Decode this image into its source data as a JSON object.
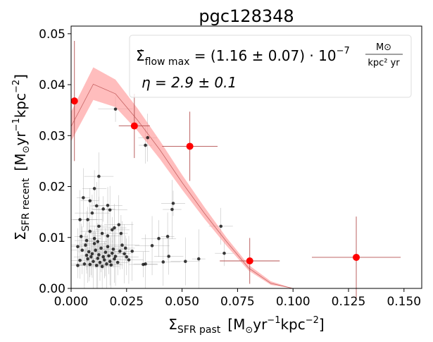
{
  "chart_data": {
    "type": "scatter",
    "title": "pgc128348",
    "xlabel": {
      "sym": "Σ",
      "sub": "SFR past",
      "units_pre": "[M",
      "units_sun": "⊙",
      "units_yr": "yr",
      "units_exp1": "−1",
      "units_kpc": "kpc",
      "units_exp2": "−2",
      "units_close": "]"
    },
    "ylabel": {
      "sym": "Σ",
      "sub": "SFR recent",
      "units_pre": "[M",
      "units_sun": "⊙",
      "units_yr": "yr",
      "units_exp1": "−1",
      "units_kpc": "kpc",
      "units_exp2": "−2",
      "units_close": "]"
    },
    "xlim": [
      0.0,
      0.158
    ],
    "ylim": [
      0.0,
      0.0515
    ],
    "xticks": [
      0.0,
      0.025,
      0.05,
      0.075,
      0.1,
      0.125,
      0.15
    ],
    "xtick_labels": [
      "0.000",
      "0.025",
      "0.050",
      "0.075",
      "0.100",
      "0.125",
      "0.150"
    ],
    "yticks": [
      0.0,
      0.01,
      0.02,
      0.03,
      0.04,
      0.05
    ],
    "ytick_labels": [
      "0.00",
      "0.01",
      "0.02",
      "0.03",
      "0.04",
      "0.05"
    ],
    "annotation": {
      "line1_sym": "Σ̇",
      "line1_sub": "flow max",
      "line1_eq": " = (1.16 ± 0.07) · 10",
      "line1_exp": "−7",
      "line1_frac_num": "M⊙",
      "line1_frac_den": "kpc² yr",
      "line2": "η = 2.9 ± 0.1"
    },
    "colors": {
      "binned": "#ff0000",
      "binned_err": "#b45050",
      "scatter": "#000000",
      "band": "#ff9999",
      "model_line": "#c86464"
    },
    "model_band": {
      "x": [
        0.0,
        0.01,
        0.02,
        0.03,
        0.04,
        0.05,
        0.06,
        0.07,
        0.08,
        0.09,
        0.1,
        0.13
      ],
      "center": [
        0.0318,
        0.0401,
        0.0382,
        0.033,
        0.0272,
        0.0208,
        0.0148,
        0.0092,
        0.004,
        0.001,
        0.0,
        0.0
      ],
      "lower": [
        0.0289,
        0.037,
        0.0356,
        0.0309,
        0.0254,
        0.0194,
        0.0137,
        0.0084,
        0.0035,
        0.0007,
        0.0,
        0.0
      ],
      "upper": [
        0.0347,
        0.0434,
        0.041,
        0.0353,
        0.029,
        0.0223,
        0.016,
        0.01,
        0.0046,
        0.0014,
        0.0,
        0.0
      ]
    },
    "binned_points": [
      {
        "x": 0.0015,
        "y": 0.0368,
        "xerr": 0.0015,
        "yerr": 0.0118
      },
      {
        "x": 0.0285,
        "y": 0.0319,
        "xerr": 0.007,
        "yerr": 0.0063
      },
      {
        "x": 0.0535,
        "y": 0.0279,
        "xerr": 0.0125,
        "yerr": 0.0068
      },
      {
        "x": 0.0805,
        "y": 0.0054,
        "xerr": 0.0135,
        "yerr": 0.0045
      },
      {
        "x": 0.1285,
        "y": 0.0061,
        "xerr": 0.02,
        "yerr": 0.008
      }
    ],
    "scatter_points": [
      {
        "x": 0.003,
        "y": 0.0045
      },
      {
        "x": 0.004,
        "y": 0.0055
      },
      {
        "x": 0.005,
        "y": 0.0075
      },
      {
        "x": 0.006,
        "y": 0.0048
      },
      {
        "x": 0.0065,
        "y": 0.0085
      },
      {
        "x": 0.007,
        "y": 0.0065
      },
      {
        "x": 0.0075,
        "y": 0.0058
      },
      {
        "x": 0.008,
        "y": 0.0072
      },
      {
        "x": 0.0085,
        "y": 0.0047
      },
      {
        "x": 0.009,
        "y": 0.0062
      },
      {
        "x": 0.0095,
        "y": 0.0068
      },
      {
        "x": 0.01,
        "y": 0.0053
      },
      {
        "x": 0.0105,
        "y": 0.0088
      },
      {
        "x": 0.011,
        "y": 0.0075
      },
      {
        "x": 0.0115,
        "y": 0.0045
      },
      {
        "x": 0.012,
        "y": 0.0059
      },
      {
        "x": 0.0125,
        "y": 0.0066
      },
      {
        "x": 0.013,
        "y": 0.0051
      },
      {
        "x": 0.0135,
        "y": 0.0079
      },
      {
        "x": 0.014,
        "y": 0.0043
      },
      {
        "x": 0.0145,
        "y": 0.0062
      },
      {
        "x": 0.015,
        "y": 0.0056
      },
      {
        "x": 0.0155,
        "y": 0.0071
      },
      {
        "x": 0.016,
        "y": 0.0048
      },
      {
        "x": 0.0165,
        "y": 0.0082
      },
      {
        "x": 0.017,
        "y": 0.0064
      },
      {
        "x": 0.0175,
        "y": 0.0053
      },
      {
        "x": 0.018,
        "y": 0.0046
      },
      {
        "x": 0.0185,
        "y": 0.0069
      },
      {
        "x": 0.019,
        "y": 0.0077
      },
      {
        "x": 0.0195,
        "y": 0.0058
      },
      {
        "x": 0.02,
        "y": 0.0063
      },
      {
        "x": 0.021,
        "y": 0.0051
      },
      {
        "x": 0.022,
        "y": 0.0073
      },
      {
        "x": 0.023,
        "y": 0.0085
      },
      {
        "x": 0.024,
        "y": 0.0068
      },
      {
        "x": 0.0245,
        "y": 0.0079
      },
      {
        "x": 0.025,
        "y": 0.0062
      },
      {
        "x": 0.026,
        "y": 0.0056
      },
      {
        "x": 0.0275,
        "y": 0.0073
      },
      {
        "x": 0.0105,
        "y": 0.0098
      },
      {
        "x": 0.012,
        "y": 0.0092
      },
      {
        "x": 0.014,
        "y": 0.0108
      },
      {
        "x": 0.0165,
        "y": 0.0103
      },
      {
        "x": 0.0185,
        "y": 0.0115
      },
      {
        "x": 0.0225,
        "y": 0.0108
      },
      {
        "x": 0.0085,
        "y": 0.0112
      },
      {
        "x": 0.007,
        "y": 0.0094
      },
      {
        "x": 0.0075,
        "y": 0.0135
      },
      {
        "x": 0.0095,
        "y": 0.0148
      },
      {
        "x": 0.0115,
        "y": 0.0162
      },
      {
        "x": 0.0125,
        "y": 0.0122
      },
      {
        "x": 0.0145,
        "y": 0.0156
      },
      {
        "x": 0.0165,
        "y": 0.0163
      },
      {
        "x": 0.0175,
        "y": 0.0154
      },
      {
        "x": 0.0055,
        "y": 0.0178
      },
      {
        "x": 0.0085,
        "y": 0.0172
      },
      {
        "x": 0.0105,
        "y": 0.0196
      },
      {
        "x": 0.0125,
        "y": 0.022
      },
      {
        "x": 0.004,
        "y": 0.0135
      },
      {
        "x": 0.0045,
        "y": 0.0102
      },
      {
        "x": 0.003,
        "y": 0.0082
      },
      {
        "x": 0.0195,
        "y": 0.0119
      },
      {
        "x": 0.0215,
        "y": 0.0125
      },
      {
        "x": 0.02,
        "y": 0.0352
      },
      {
        "x": 0.0335,
        "y": 0.0281
      },
      {
        "x": 0.0345,
        "y": 0.0296
      },
      {
        "x": 0.0335,
        "y": 0.0048
      },
      {
        "x": 0.0325,
        "y": 0.0047
      },
      {
        "x": 0.0395,
        "y": 0.0098
      },
      {
        "x": 0.0435,
        "y": 0.0102
      },
      {
        "x": 0.0455,
        "y": 0.0155
      },
      {
        "x": 0.046,
        "y": 0.0167
      },
      {
        "x": 0.044,
        "y": 0.0063
      },
      {
        "x": 0.0415,
        "y": 0.0052
      },
      {
        "x": 0.0575,
        "y": 0.0058
      },
      {
        "x": 0.069,
        "y": 0.0069
      },
      {
        "x": 0.0675,
        "y": 0.0122
      },
      {
        "x": 0.0515,
        "y": 0.0053
      },
      {
        "x": 0.0365,
        "y": 0.0084
      }
    ]
  }
}
